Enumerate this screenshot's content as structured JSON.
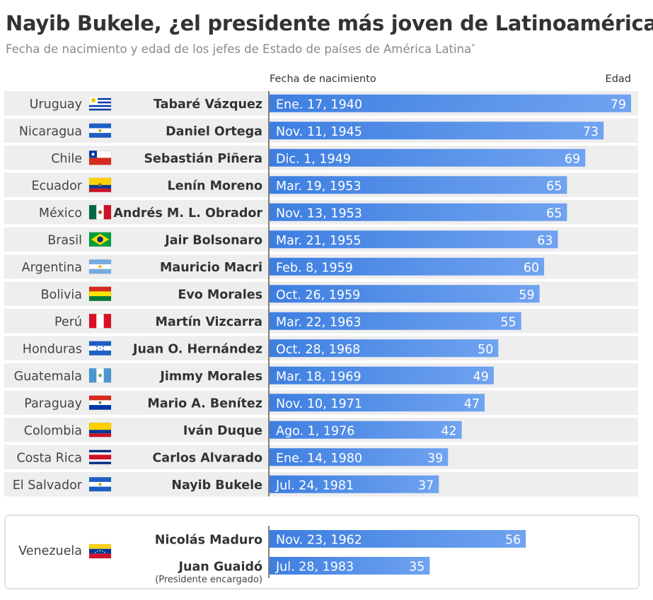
{
  "title": "Nayib Bukele, ¿el presidente más joven de Latinoamérica?",
  "subtitle": "Fecha de nacimiento y edad de los jefes de Estado de países de América Latina",
  "subtitle_mark": "*",
  "colors": {
    "bar": "#3d7ee0",
    "bar_light": "#70a3f0",
    "stripe": "#eeeeee",
    "axis": "#555555"
  },
  "chart_data": {
    "type": "bar",
    "orientation": "horizontal",
    "column_headers": {
      "date": "Fecha de nacimiento",
      "age": "Edad"
    },
    "xlim": [
      0,
      79
    ],
    "rows": [
      {
        "country": "Uruguay",
        "flag": "flag-uruguay",
        "name": "Tabaré Vázquez",
        "date": "Ene. 17, 1940",
        "age": 79
      },
      {
        "country": "Nicaragua",
        "flag": "flag-nicaragua",
        "name": "Daniel Ortega",
        "date": "Nov. 11, 1945",
        "age": 73
      },
      {
        "country": "Chile",
        "flag": "flag-chile",
        "name": "Sebastián Piñera",
        "date": "Dic. 1, 1949",
        "age": 69
      },
      {
        "country": "Ecuador",
        "flag": "flag-ecuador",
        "name": "Lenín Moreno",
        "date": "Mar. 19, 1953",
        "age": 65
      },
      {
        "country": "México",
        "flag": "flag-mexico",
        "name": "Andrés M. L. Obrador",
        "date": "Nov. 13, 1953",
        "age": 65
      },
      {
        "country": "Brasil",
        "flag": "flag-brasil",
        "name": "Jair Bolsonaro",
        "date": "Mar. 21, 1955",
        "age": 63
      },
      {
        "country": "Argentina",
        "flag": "flag-argentina",
        "name": "Mauricio Macri",
        "date": "Feb. 8, 1959",
        "age": 60
      },
      {
        "country": "Bolivia",
        "flag": "flag-bolivia",
        "name": "Evo Morales",
        "date": "Oct. 26, 1959",
        "age": 59
      },
      {
        "country": "Perú",
        "flag": "flag-peru",
        "name": "Martín Vizcarra",
        "date": "Mar. 22, 1963",
        "age": 55
      },
      {
        "country": "Honduras",
        "flag": "flag-honduras",
        "name": "Juan O. Hernández",
        "date": "Oct. 28, 1968",
        "age": 50
      },
      {
        "country": "Guatemala",
        "flag": "flag-guatemala",
        "name": "Jimmy Morales",
        "date": "Mar. 18, 1969",
        "age": 49
      },
      {
        "country": "Paraguay",
        "flag": "flag-paraguay",
        "name": "Mario A. Benítez",
        "date": "Nov. 10, 1971",
        "age": 47
      },
      {
        "country": "Colombia",
        "flag": "flag-colombia",
        "name": "Iván Duque",
        "date": "Ago. 1, 1976",
        "age": 42
      },
      {
        "country": "Costa Rica",
        "flag": "flag-costa-rica",
        "name": "Carlos Alvarado",
        "date": "Ene. 14, 1980",
        "age": 39
      },
      {
        "country": "El Salvador",
        "flag": "flag-el-salvador",
        "name": "Nayib Bukele",
        "date": "Jul. 24, 1981",
        "age": 37
      }
    ],
    "venezuela": {
      "country": "Venezuela",
      "flag": "flag-venezuela",
      "rows": [
        {
          "name": "Nicolás Maduro",
          "date": "Nov. 23, 1962",
          "age": 56
        },
        {
          "name": "Juan Guaidó",
          "note": "(Presidente encargado)",
          "date": "Jul. 28, 1983",
          "age": 35
        }
      ]
    }
  }
}
